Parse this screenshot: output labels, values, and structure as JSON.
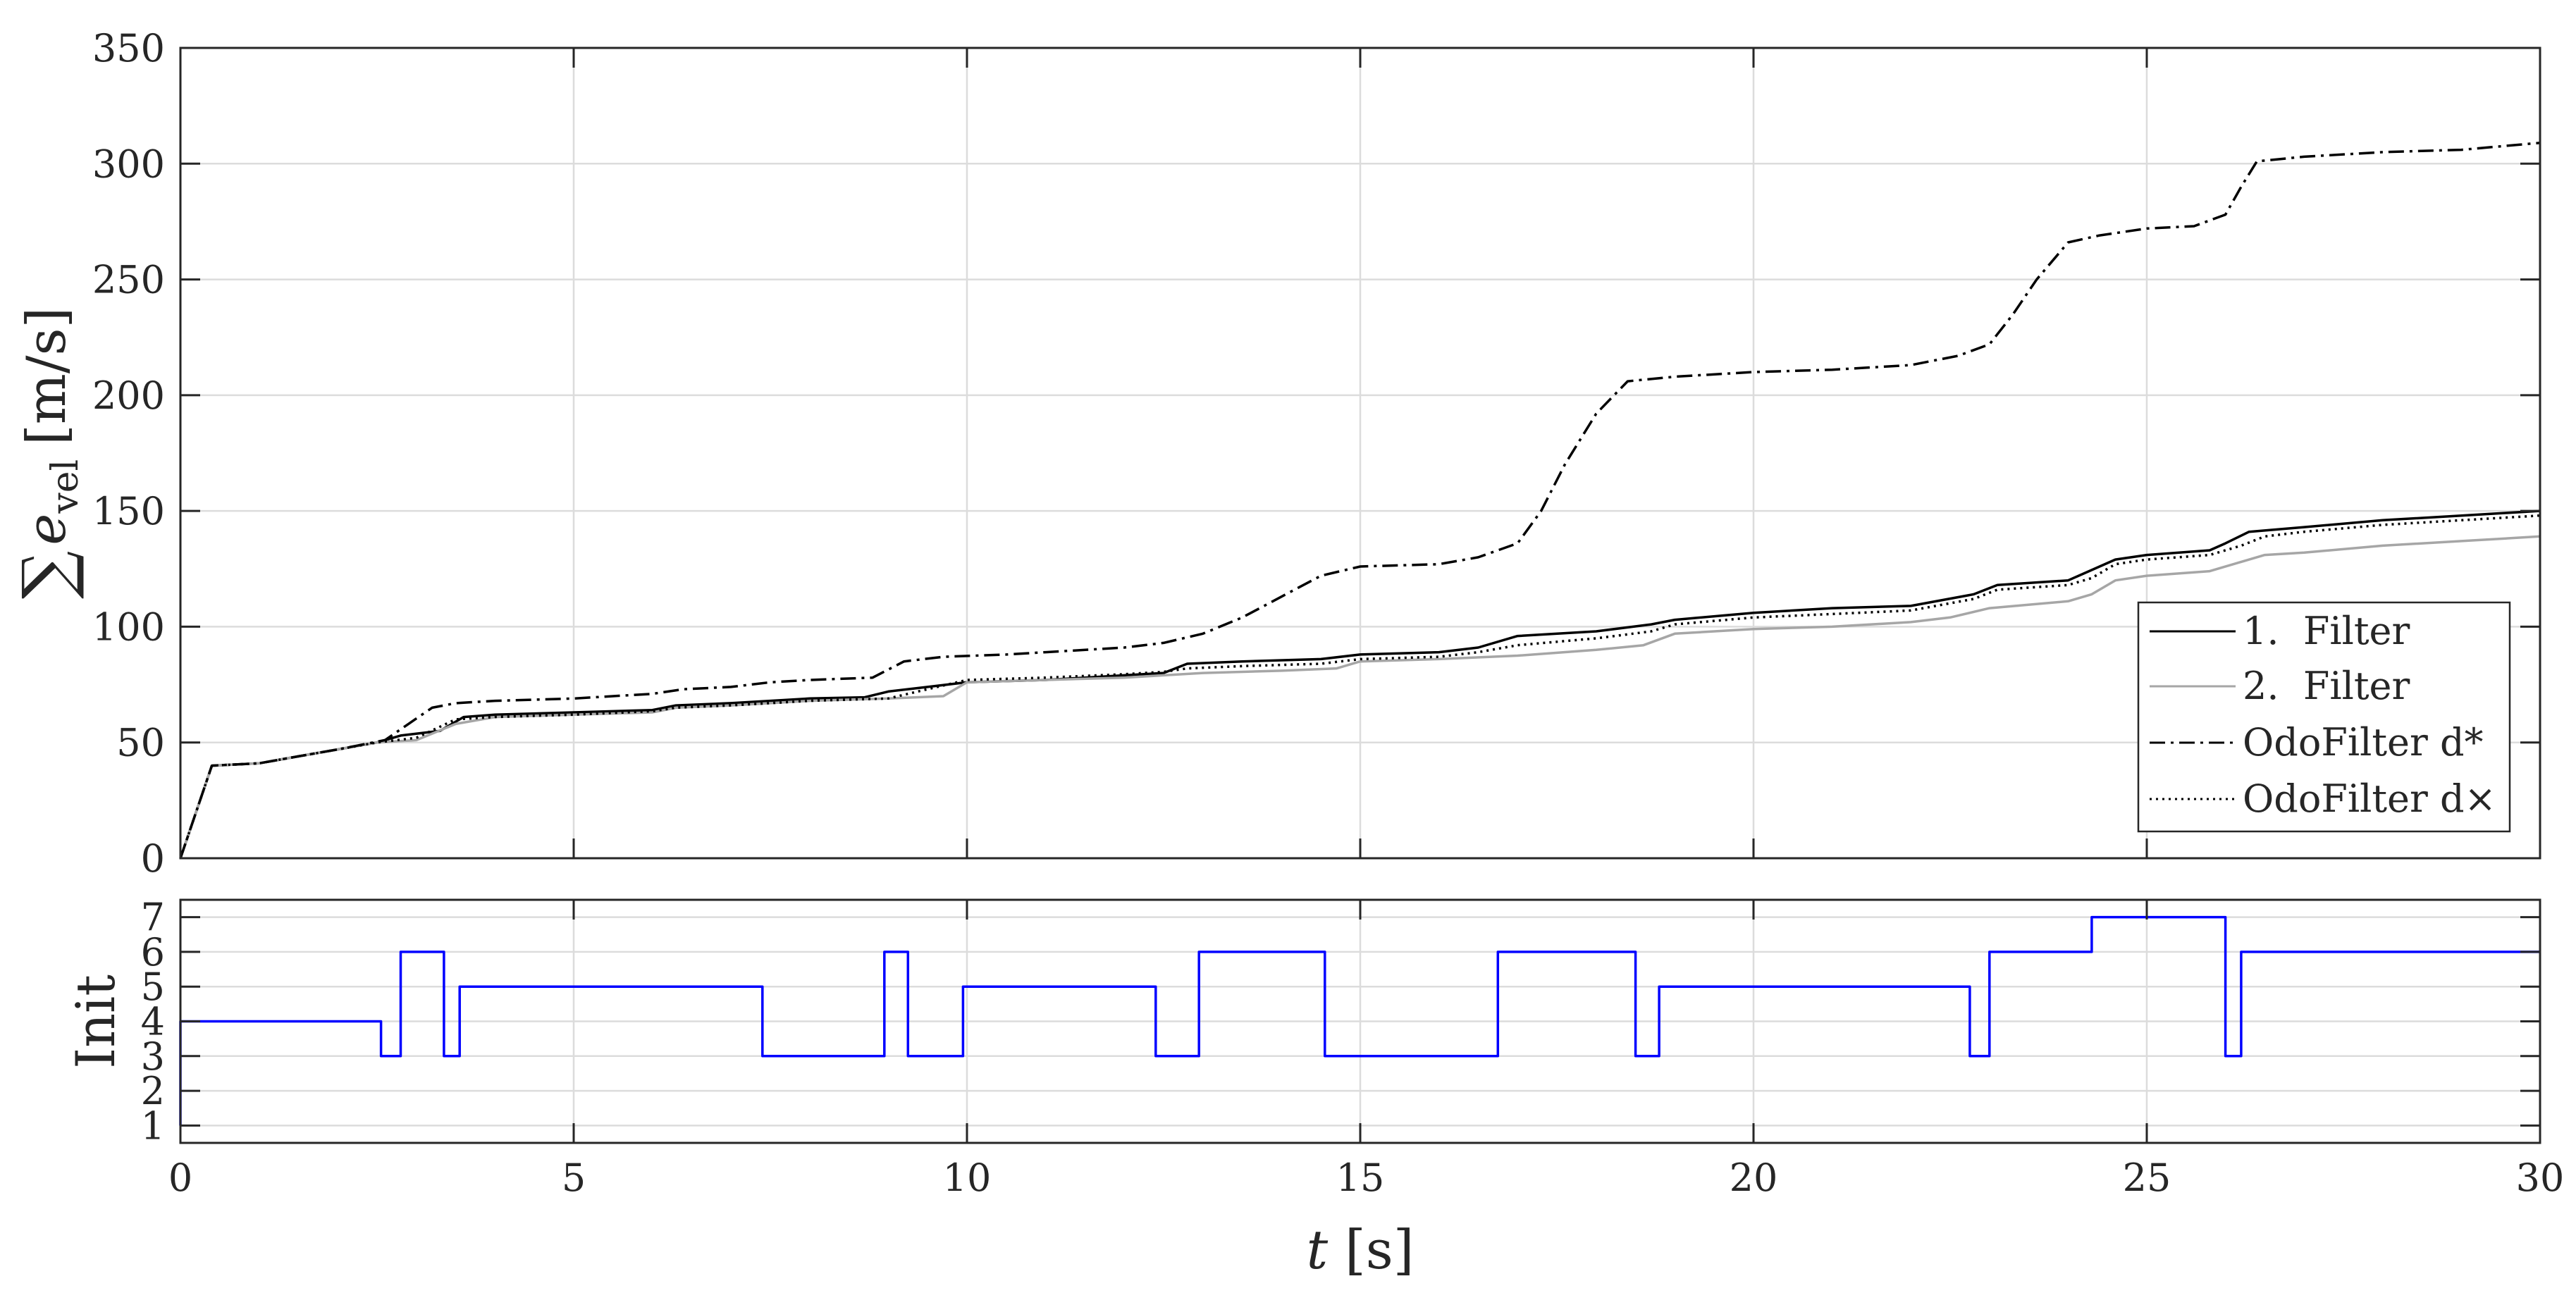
{
  "chart_data": [
    {
      "type": "line",
      "ylabel_prefix": "∑",
      "ylabel_var": "e",
      "ylabel_sub": "vel",
      "ylabel_unit": "[m/s]",
      "xlim": [
        0,
        30
      ],
      "ylim": [
        0,
        350
      ],
      "xticks": [
        "0",
        "5",
        "10",
        "15",
        "20",
        "25",
        "30"
      ],
      "yticks": [
        "0",
        "50",
        "100",
        "150",
        "200",
        "250",
        "300",
        "350"
      ],
      "grid": true,
      "legend_position": "bottom-right",
      "series": [
        {
          "name": "1.  Filter",
          "color": "#000000",
          "style": "solid",
          "points": [
            [
              0,
              0
            ],
            [
              0.4,
              40
            ],
            [
              1,
              41
            ],
            [
              1.5,
              44
            ],
            [
              2,
              47
            ],
            [
              2.5,
              50
            ],
            [
              2.8,
              53
            ],
            [
              3.3,
              55
            ],
            [
              3.6,
              61
            ],
            [
              4,
              62
            ],
            [
              5,
              63
            ],
            [
              6,
              64
            ],
            [
              6.3,
              66
            ],
            [
              7,
              67
            ],
            [
              7.5,
              68
            ],
            [
              8,
              69
            ],
            [
              8.7,
              69.5
            ],
            [
              9,
              72
            ],
            [
              9.5,
              74
            ],
            [
              10,
              76
            ],
            [
              11,
              77
            ],
            [
              12,
              79
            ],
            [
              12.5,
              80
            ],
            [
              12.8,
              84
            ],
            [
              13.5,
              85
            ],
            [
              14.5,
              86
            ],
            [
              15,
              88
            ],
            [
              16,
              89
            ],
            [
              16.5,
              91
            ],
            [
              17,
              96
            ],
            [
              18,
              98
            ],
            [
              18.7,
              101
            ],
            [
              19,
              103
            ],
            [
              20,
              106
            ],
            [
              21,
              108
            ],
            [
              22,
              109
            ],
            [
              22.8,
              114
            ],
            [
              23.1,
              118
            ],
            [
              24,
              120
            ],
            [
              24.2,
              123
            ],
            [
              24.6,
              129
            ],
            [
              25,
              131
            ],
            [
              25.8,
              133
            ],
            [
              26,
              136
            ],
            [
              26.3,
              141
            ],
            [
              27,
              143
            ],
            [
              28,
              146
            ],
            [
              29,
              148
            ],
            [
              30,
              150
            ]
          ]
        },
        {
          "name": "2.  Filter",
          "color": "#a6a6a6",
          "style": "solid",
          "points": [
            [
              0,
              0
            ],
            [
              0.4,
              40
            ],
            [
              1,
              41
            ],
            [
              1.5,
              44
            ],
            [
              2,
              47
            ],
            [
              2.5,
              50
            ],
            [
              3,
              51
            ],
            [
              3.5,
              58
            ],
            [
              4,
              61
            ],
            [
              5,
              62
            ],
            [
              6,
              63
            ],
            [
              6.3,
              65
            ],
            [
              7,
              66
            ],
            [
              7.5,
              67
            ],
            [
              8,
              68
            ],
            [
              9,
              69
            ],
            [
              9.7,
              70
            ],
            [
              10,
              76
            ],
            [
              11,
              77
            ],
            [
              12,
              78
            ],
            [
              12.5,
              79
            ],
            [
              13,
              80
            ],
            [
              14,
              81
            ],
            [
              14.7,
              82
            ],
            [
              15,
              85
            ],
            [
              16,
              86
            ],
            [
              17,
              87.5
            ],
            [
              18,
              90
            ],
            [
              18.6,
              92
            ],
            [
              19,
              97
            ],
            [
              20,
              99
            ],
            [
              21,
              100
            ],
            [
              22,
              102
            ],
            [
              22.5,
              104
            ],
            [
              23,
              108
            ],
            [
              24,
              111
            ],
            [
              24.3,
              114
            ],
            [
              24.6,
              120
            ],
            [
              25,
              122
            ],
            [
              25.8,
              124
            ],
            [
              26.2,
              128
            ],
            [
              26.5,
              131
            ],
            [
              27,
              132
            ],
            [
              28,
              135
            ],
            [
              29,
              137
            ],
            [
              30,
              139
            ]
          ]
        },
        {
          "name": "OdoFilter d*",
          "color": "#000000",
          "style": "dashdot",
          "points": [
            [
              0,
              0
            ],
            [
              0.4,
              40
            ],
            [
              1,
              41
            ],
            [
              1.5,
              44
            ],
            [
              2,
              47
            ],
            [
              2.6,
              51
            ],
            [
              2.9,
              58
            ],
            [
              3.2,
              65
            ],
            [
              3.5,
              67
            ],
            [
              4,
              68
            ],
            [
              5,
              69
            ],
            [
              6,
              71
            ],
            [
              6.4,
              73
            ],
            [
              7,
              74
            ],
            [
              7.5,
              76
            ],
            [
              8,
              77
            ],
            [
              8.8,
              78
            ],
            [
              9.2,
              85
            ],
            [
              9.7,
              87
            ],
            [
              10.5,
              88
            ],
            [
              11,
              89
            ],
            [
              12,
              91
            ],
            [
              12.5,
              93
            ],
            [
              13,
              97
            ],
            [
              13.5,
              104
            ],
            [
              14,
              113
            ],
            [
              14.5,
              122
            ],
            [
              15,
              126
            ],
            [
              16,
              127
            ],
            [
              16.5,
              130
            ],
            [
              17,
              136
            ],
            [
              17.3,
              150
            ],
            [
              17.6,
              170
            ],
            [
              18,
              192
            ],
            [
              18.4,
              206
            ],
            [
              19,
              208
            ],
            [
              20,
              210
            ],
            [
              21,
              211
            ],
            [
              22,
              213
            ],
            [
              22.6,
              217
            ],
            [
              23,
              222
            ],
            [
              23.3,
              235
            ],
            [
              23.6,
              250
            ],
            [
              24,
              266
            ],
            [
              24.4,
              269
            ],
            [
              25,
              272
            ],
            [
              25.6,
              273
            ],
            [
              26,
              278
            ],
            [
              26.2,
              290
            ],
            [
              26.4,
              301
            ],
            [
              27,
              303
            ],
            [
              28,
              305
            ],
            [
              29,
              306
            ],
            [
              30,
              309
            ]
          ]
        },
        {
          "name": "OdoFilter d×",
          "color": "#000000",
          "style": "dotted",
          "points": [
            [
              0,
              0
            ],
            [
              0.4,
              40
            ],
            [
              1,
              41
            ],
            [
              1.5,
              44
            ],
            [
              2,
              47
            ],
            [
              2.5,
              50
            ],
            [
              3,
              52
            ],
            [
              3.5,
              60
            ],
            [
              4,
              61
            ],
            [
              5,
              62
            ],
            [
              6,
              63.5
            ],
            [
              6.3,
              65
            ],
            [
              7,
              66
            ],
            [
              7.5,
              67
            ],
            [
              8,
              68
            ],
            [
              9,
              69
            ],
            [
              9.5,
              73
            ],
            [
              10,
              77
            ],
            [
              11,
              78
            ],
            [
              12,
              79.5
            ],
            [
              12.5,
              80.5
            ],
            [
              12.8,
              82
            ],
            [
              13.5,
              83
            ],
            [
              14.5,
              84
            ],
            [
              15,
              86
            ],
            [
              16,
              87
            ],
            [
              16.5,
              89
            ],
            [
              17,
              92
            ],
            [
              18,
              95
            ],
            [
              18.7,
              98
            ],
            [
              19,
              101
            ],
            [
              20,
              104
            ],
            [
              21,
              105.5
            ],
            [
              22,
              107
            ],
            [
              22.8,
              112
            ],
            [
              23.1,
              116
            ],
            [
              24,
              118
            ],
            [
              24.3,
              121
            ],
            [
              24.6,
              127
            ],
            [
              25,
              129
            ],
            [
              25.8,
              131
            ],
            [
              26.2,
              135
            ],
            [
              26.5,
              139
            ],
            [
              27,
              141
            ],
            [
              28,
              144
            ],
            [
              29,
              146
            ],
            [
              30,
              148
            ]
          ]
        }
      ]
    },
    {
      "type": "line",
      "xlabel_var": "t",
      "xlabel_unit": "[s]",
      "ylabel": "Init",
      "xlim": [
        0,
        30
      ],
      "ylim": [
        0.5,
        7.5
      ],
      "xticks": [
        "0",
        "5",
        "10",
        "15",
        "20",
        "25",
        "30"
      ],
      "yticks": [
        "1",
        "2",
        "3",
        "4",
        "5",
        "6",
        "7"
      ],
      "grid": true,
      "series": [
        {
          "color": "#0000ff",
          "style": "step",
          "points": [
            [
              0,
              1
            ],
            [
              0,
              4
            ],
            [
              2.55,
              4
            ],
            [
              2.55,
              3
            ],
            [
              2.8,
              3
            ],
            [
              2.8,
              6
            ],
            [
              3.35,
              6
            ],
            [
              3.35,
              3
            ],
            [
              3.55,
              3
            ],
            [
              3.55,
              5
            ],
            [
              7.4,
              5
            ],
            [
              7.4,
              3
            ],
            [
              8.95,
              3
            ],
            [
              8.95,
              6
            ],
            [
              9.25,
              6
            ],
            [
              9.25,
              3
            ],
            [
              9.95,
              3
            ],
            [
              9.95,
              5
            ],
            [
              12.4,
              5
            ],
            [
              12.4,
              3
            ],
            [
              12.95,
              3
            ],
            [
              12.95,
              6
            ],
            [
              14.55,
              6
            ],
            [
              14.55,
              3
            ],
            [
              16.75,
              3
            ],
            [
              16.75,
              6
            ],
            [
              18.5,
              6
            ],
            [
              18.5,
              3
            ],
            [
              18.8,
              3
            ],
            [
              18.8,
              5
            ],
            [
              22.75,
              5
            ],
            [
              22.75,
              3
            ],
            [
              23.0,
              3
            ],
            [
              23.0,
              6
            ],
            [
              24.3,
              6
            ],
            [
              24.3,
              7
            ],
            [
              26.0,
              7
            ],
            [
              26.0,
              3
            ],
            [
              26.2,
              3
            ],
            [
              26.2,
              6
            ],
            [
              30,
              6
            ]
          ]
        }
      ]
    }
  ]
}
